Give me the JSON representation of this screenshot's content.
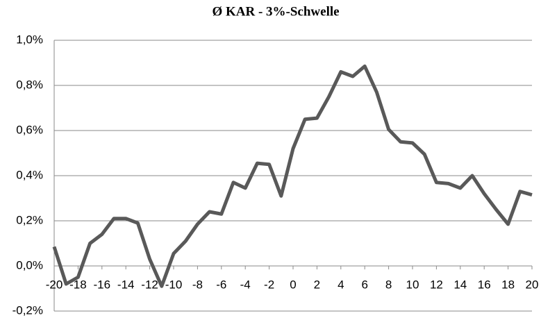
{
  "chart_data": {
    "type": "line",
    "title": "Ø KAR - 3%-Schwelle",
    "x": [
      -20,
      -19,
      -18,
      -17,
      -16,
      -15,
      -14,
      -13,
      -12,
      -11,
      -10,
      -9,
      -8,
      -7,
      -6,
      -5,
      -4,
      -3,
      -2,
      -1,
      0,
      1,
      2,
      3,
      4,
      5,
      6,
      7,
      8,
      9,
      10,
      11,
      12,
      13,
      14,
      15,
      16,
      17,
      18,
      19,
      20
    ],
    "series": [
      {
        "color": "#595959",
        "values": [
          0.085,
          -0.08,
          -0.05,
          0.1,
          0.14,
          0.21,
          0.21,
          0.19,
          0.03,
          -0.09,
          0.055,
          0.11,
          0.185,
          0.24,
          0.23,
          0.37,
          0.345,
          0.455,
          0.45,
          0.31,
          0.52,
          0.65,
          0.655,
          0.75,
          0.86,
          0.84,
          0.885,
          0.77,
          0.605,
          0.55,
          0.545,
          0.495,
          0.37,
          0.365,
          0.345,
          0.4,
          0.32,
          0.25,
          0.185,
          0.33,
          0.315
        ]
      }
    ],
    "xlim": [
      -20,
      20
    ],
    "xticks": [
      -20,
      -18,
      -16,
      -14,
      -12,
      -10,
      -8,
      -6,
      -4,
      -2,
      0,
      2,
      4,
      6,
      8,
      10,
      12,
      14,
      16,
      18,
      20
    ],
    "ylim": [
      -0.2,
      1.0
    ],
    "yticks": [
      {
        "value": -0.2,
        "label": "-0,2%"
      },
      {
        "value": 0,
        "label": "0,0%"
      },
      {
        "value": 0.2,
        "label": "0,2%"
      },
      {
        "value": 0.4,
        "label": "0,4%"
      },
      {
        "value": 0.6,
        "label": "0,6%"
      },
      {
        "value": 0.8,
        "label": "0,8%"
      },
      {
        "value": 1.0,
        "label": "1,0%"
      }
    ],
    "grid": true
  }
}
